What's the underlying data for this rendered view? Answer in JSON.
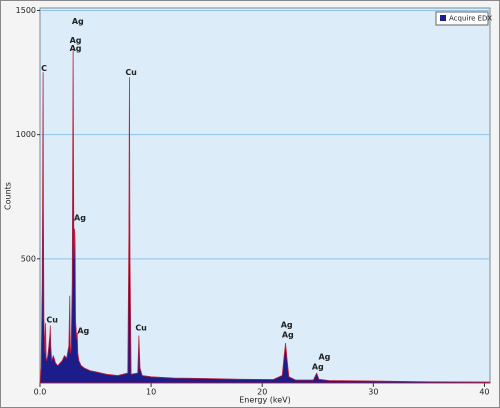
{
  "chart_data": {
    "type": "area",
    "x_label": "Energy (keV)",
    "y_label": "Counts",
    "xlim": [
      0,
      40.5
    ],
    "ylim": [
      0,
      1510
    ],
    "xticks": [
      {
        "value": 0,
        "label": "0.0"
      },
      10,
      20,
      30,
      40
    ],
    "yticks": [
      500,
      1000,
      1500
    ],
    "grid": true,
    "legend": "top-right",
    "x": [
      0,
      0.1,
      0.2,
      0.25,
      0.28,
      0.31,
      0.35,
      0.45,
      0.5,
      0.55,
      0.6,
      0.7,
      0.8,
      0.9,
      0.93,
      0.97,
      1.05,
      1.2,
      1.4,
      1.6,
      1.8,
      2.0,
      2.2,
      2.4,
      2.6,
      2.68,
      2.72,
      2.8,
      2.9,
      2.98,
      3.05,
      3.12,
      3.16,
      3.2,
      3.3,
      3.35,
      3.4,
      3.5,
      3.7,
      4.0,
      4.5,
      5,
      6,
      7,
      7.9,
      8.0,
      8.05,
      8.1,
      8.2,
      8.8,
      8.9,
      9.0,
      9.2,
      10,
      12,
      15,
      18,
      21,
      21.8,
      22.0,
      22.1,
      22.2,
      22.4,
      23,
      24.6,
      24.9,
      25.1,
      26,
      30,
      35,
      40.5
    ],
    "series": [
      {
        "name": "Acquire EDX",
        "color": "#1c1c8a",
        "outline": "#c0203a",
        "values": [
          0,
          60,
          400,
          900,
          1250,
          700,
          260,
          120,
          240,
          100,
          90,
          110,
          150,
          200,
          230,
          150,
          90,
          110,
          80,
          70,
          80,
          90,
          110,
          100,
          150,
          350,
          120,
          140,
          400,
          1340,
          500,
          620,
          560,
          250,
          180,
          200,
          120,
          90,
          70,
          60,
          50,
          45,
          35,
          30,
          40,
          600,
          1230,
          500,
          35,
          40,
          190,
          60,
          30,
          25,
          20,
          18,
          15,
          14,
          30,
          120,
          160,
          110,
          25,
          12,
          12,
          40,
          15,
          10,
          8,
          5,
          4
        ]
      }
    ],
    "annotations": [
      {
        "text": "Ag",
        "x": 3.4,
        "y": 1455
      },
      {
        "text": "Ag",
        "x": 3.2,
        "y": 1380
      },
      {
        "text": "Ag",
        "x": 3.2,
        "y": 1347
      },
      {
        "text": "C",
        "x": 0.36,
        "y": 1266
      },
      {
        "text": "Cu",
        "x": 8.2,
        "y": 1250
      },
      {
        "text": "Ag",
        "x": 3.6,
        "y": 665
      },
      {
        "text": "Cu",
        "x": 1.1,
        "y": 254
      },
      {
        "text": "Ag",
        "x": 3.9,
        "y": 210
      },
      {
        "text": "Cu",
        "x": 9.1,
        "y": 222
      },
      {
        "text": "Ag",
        "x": 22.2,
        "y": 234
      },
      {
        "text": "Ag",
        "x": 22.3,
        "y": 194
      },
      {
        "text": "Ag",
        "x": 25.6,
        "y": 105
      },
      {
        "text": "Ag",
        "x": 25.0,
        "y": 65
      }
    ]
  }
}
